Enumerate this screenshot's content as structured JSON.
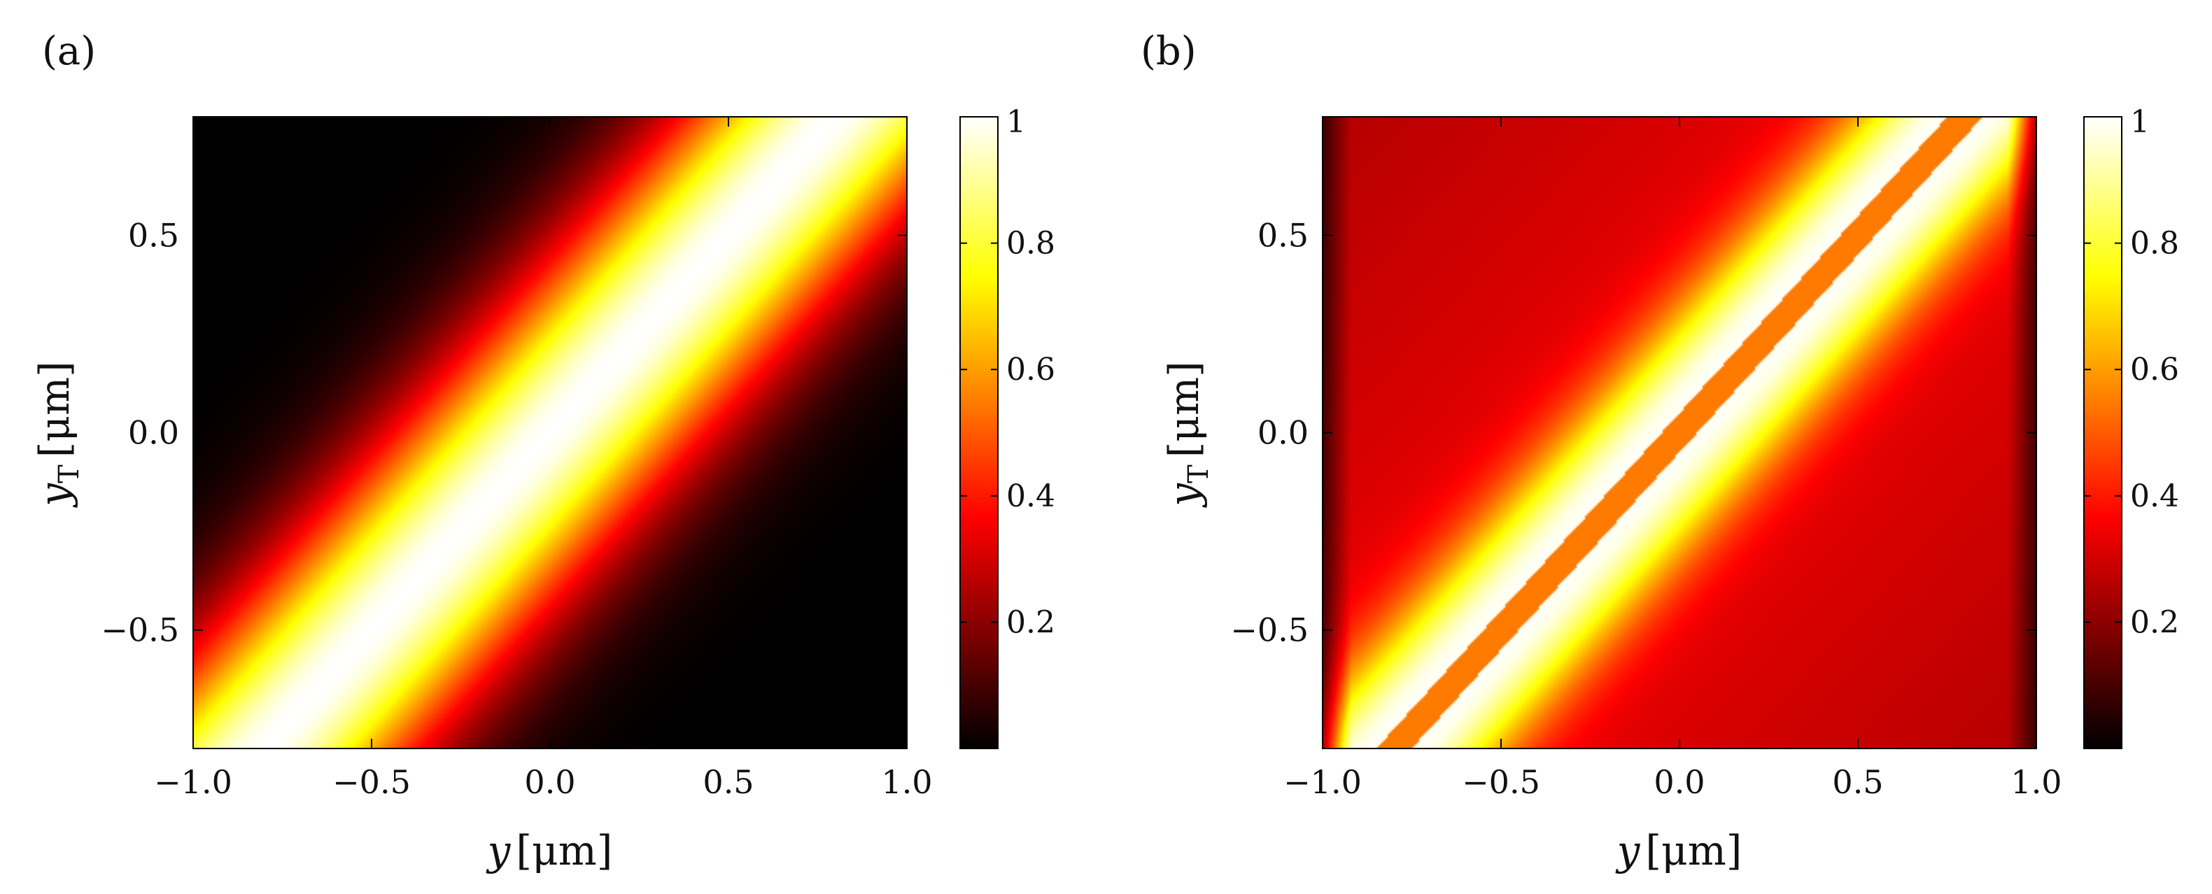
{
  "figure": {
    "colormap": "hot",
    "colormap_stops": [
      "#000000",
      "#ff0000",
      "#ffff00",
      "#ffffff"
    ]
  },
  "chart_data": [
    {
      "type": "heatmap",
      "panel_label": "(a)",
      "xlabel": {
        "var": "y",
        "unit": "[μm]"
      },
      "ylabel": {
        "var": "y",
        "sub": "T",
        "unit": "[μm]"
      },
      "xlim": [
        -1.0,
        1.0
      ],
      "ylim": [
        -0.8,
        0.8
      ],
      "xticks": [
        -1.0,
        -0.5,
        0.0,
        0.5,
        1.0
      ],
      "xtick_labels": [
        "−1.0",
        "−0.5",
        "0.0",
        "0.5",
        "1.0"
      ],
      "yticks": [
        -0.5,
        0.0,
        0.5
      ],
      "ytick_labels": [
        "−0.5",
        "0.0",
        "0.5"
      ],
      "colorbar": {
        "range": [
          0.0,
          1.0
        ],
        "ticks": [
          0.2,
          0.4,
          0.6,
          0.8,
          1.0
        ],
        "tick_labels": [
          "0.2",
          "0.4",
          "0.6",
          "0.8",
          "1"
        ]
      },
      "description_model": {
        "kind": "diagonal_band",
        "peak_value": 1.0,
        "band_width_um": 0.22,
        "offset_ratio": 1.0
      }
    },
    {
      "type": "heatmap",
      "panel_label": "(b)",
      "xlabel": {
        "var": "y",
        "unit": "[μm]"
      },
      "ylabel": {
        "var": "y",
        "sub": "T",
        "unit": "[μm]"
      },
      "xlim": [
        -1.0,
        1.0
      ],
      "ylim": [
        -0.8,
        0.8
      ],
      "xticks": [
        -1.0,
        -0.5,
        0.0,
        0.5,
        1.0
      ],
      "xtick_labels": [
        "−1.0",
        "−0.5",
        "0.0",
        "0.5",
        "1.0"
      ],
      "yticks": [
        -0.5,
        0.0,
        0.5
      ],
      "ytick_labels": [
        "−0.5",
        "0.0",
        "0.5"
      ],
      "colorbar": {
        "range": [
          0.0,
          1.0
        ],
        "ticks": [
          0.2,
          0.4,
          0.6,
          0.8,
          1.0
        ],
        "tick_labels": [
          "0.2",
          "0.4",
          "0.6",
          "0.8",
          "1"
        ]
      },
      "description_model": {
        "kind": "split_diagonal_band",
        "center_value": 0.55,
        "side_peak_value": 1.0,
        "edge_y_um": 0.92
      }
    }
  ]
}
